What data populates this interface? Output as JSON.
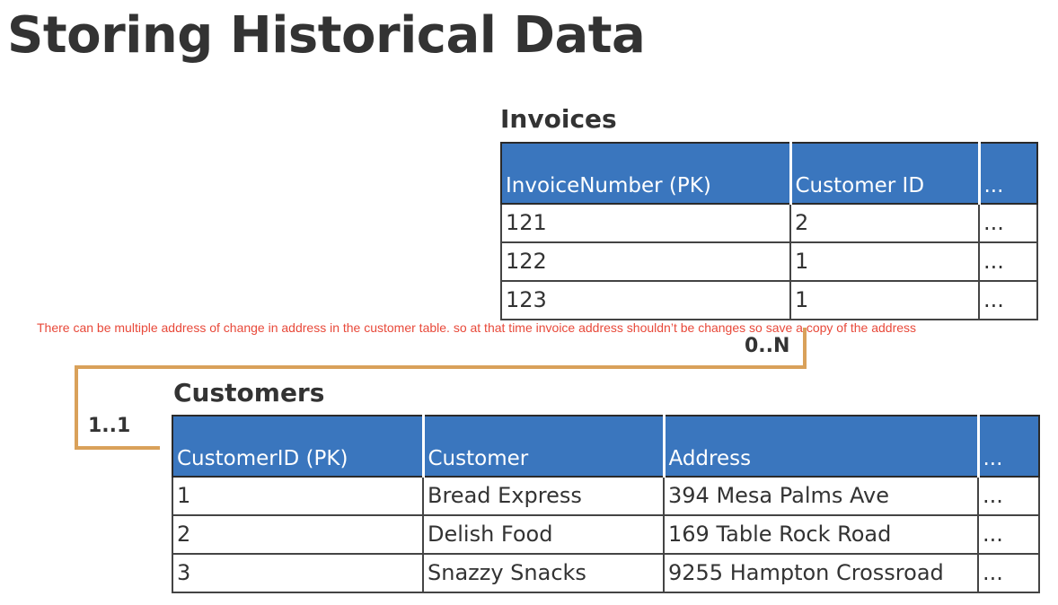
{
  "page": {
    "title": "Storing Historical Data",
    "note": "There can be multiple address of change in address in the customer table. so at that time invoice address shouldn’t be changes so save a copy of the address"
  },
  "colors": {
    "header_bg": "#3a76be",
    "connector": "#d9a15a",
    "note_text": "#e8493a"
  },
  "invoices": {
    "title": "Invoices",
    "headers": [
      "InvoiceNumber  (PK)",
      "Customer ID",
      "..."
    ],
    "rows": [
      [
        "121",
        "2",
        "..."
      ],
      [
        "122",
        "1",
        "..."
      ],
      [
        "123",
        "1",
        "..."
      ]
    ]
  },
  "customers": {
    "title": "Customers",
    "headers": [
      "CustomerID (PK)",
      "Customer",
      "Address",
      "..."
    ],
    "rows": [
      [
        "1",
        "Bread Express",
        "394 Mesa Palms Ave",
        "..."
      ],
      [
        "2",
        "Delish Food",
        "169 Table Rock Road",
        "..."
      ],
      [
        "3",
        "Snazzy Snacks",
        "9255 Hampton Crossroad",
        "..."
      ]
    ]
  },
  "relationship": {
    "invoices_cardinality": "0..N",
    "customers_cardinality": "1..1"
  }
}
